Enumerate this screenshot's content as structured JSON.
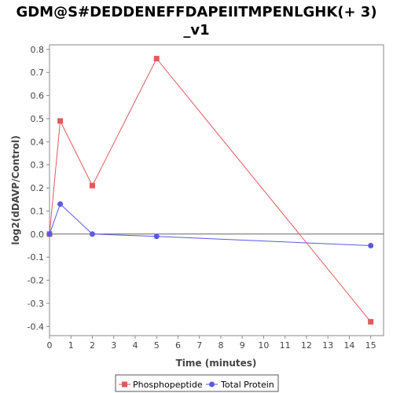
{
  "chart_data": {
    "type": "line",
    "title_lines": [
      "GDM@S#DEDDENEFFDAPEIITMPENLGHK(+ 3)",
      "_v1"
    ],
    "xlabel": "Time (minutes)",
    "ylabel": "log2(dDAVP/Control)",
    "xlim": [
      0,
      15.6
    ],
    "ylim": [
      -0.44,
      0.82
    ],
    "x_ticks": [
      0,
      1,
      2,
      3,
      4,
      5,
      6,
      7,
      8,
      9,
      10,
      11,
      12,
      13,
      14,
      15
    ],
    "y_ticks": [
      0.8,
      0.7,
      0.6,
      0.5,
      0.4,
      0.3,
      0.2,
      0.1,
      0.0,
      -0.1,
      -0.2,
      -0.3,
      -0.4
    ],
    "y_tick_labels": [
      "0.8",
      "0.7",
      "0.6",
      "0.5",
      "0.4",
      "0.3",
      "0.2",
      "0.1",
      "0.0",
      "-0.1",
      "-0.2",
      "-0.3",
      "-0.4"
    ],
    "zero_line": true,
    "grid": false,
    "legend_position": "bottom",
    "series": [
      {
        "name": "Phosphopeptide",
        "color": "#e05a5a",
        "marker": "square",
        "points": [
          {
            "x": 0,
            "y": 0.0
          },
          {
            "x": 0.5,
            "y": 0.49
          },
          {
            "x": 2,
            "y": 0.21
          },
          {
            "x": 5,
            "y": 0.76
          },
          {
            "x": 15,
            "y": -0.38
          }
        ]
      },
      {
        "name": "Total Protein",
        "color": "#5a5ae0",
        "marker": "circle",
        "points": [
          {
            "x": 0,
            "y": 0.0
          },
          {
            "x": 0.5,
            "y": 0.13
          },
          {
            "x": 2,
            "y": 0.0
          },
          {
            "x": 5,
            "y": -0.01
          },
          {
            "x": 15,
            "y": -0.05
          }
        ]
      }
    ]
  }
}
